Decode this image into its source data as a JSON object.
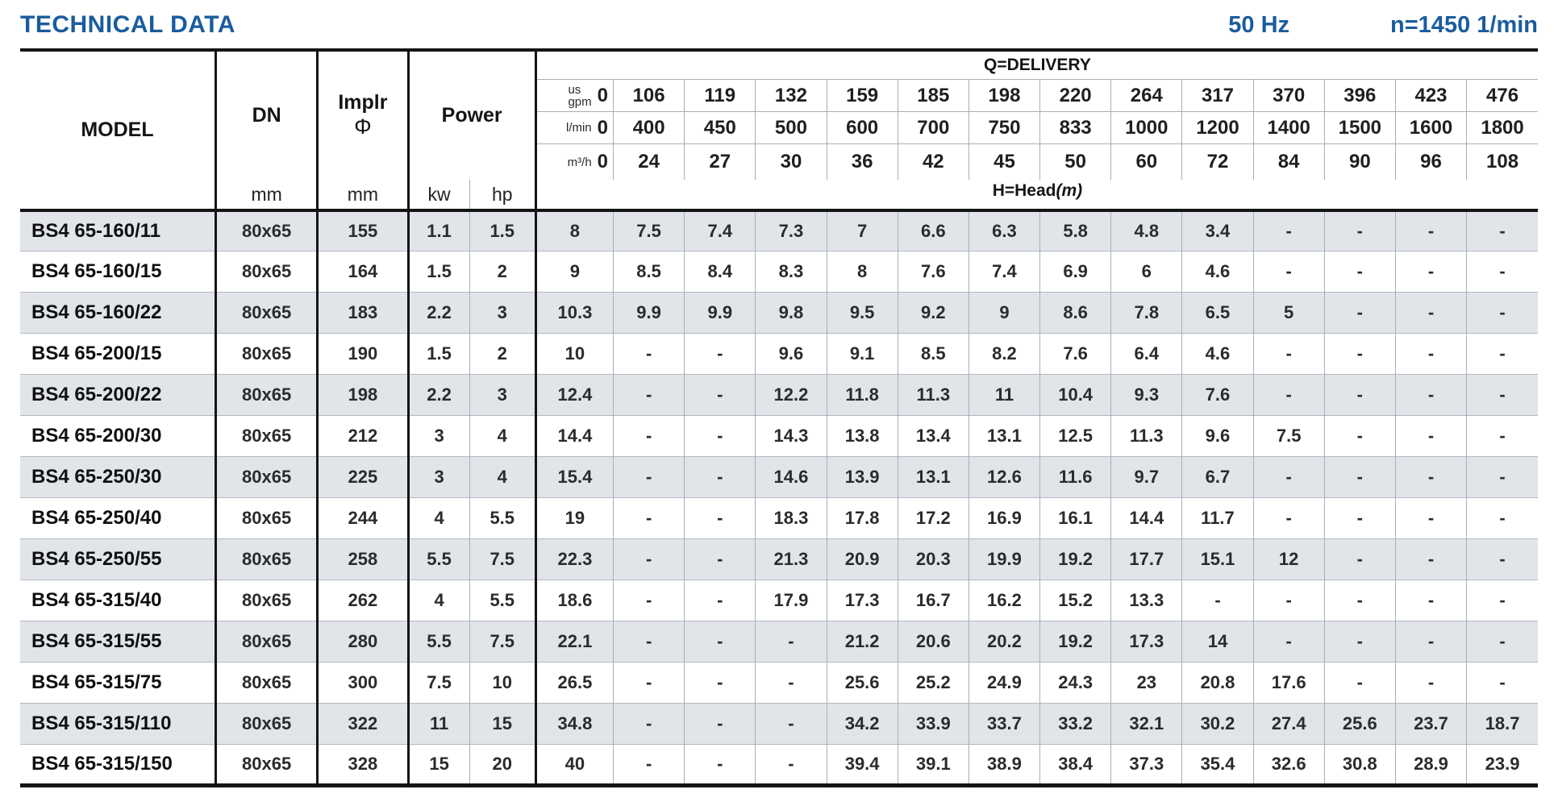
{
  "header": {
    "title": "TECHNICAL DATA",
    "frequency": "50 Hz",
    "speed": "n=1450 1/min"
  },
  "table": {
    "columns": {
      "model": "MODEL",
      "dn": "DN",
      "implr_line1": "Implr",
      "implr_line2": "Φ",
      "power": "Power",
      "dn_unit": "mm",
      "implr_unit": "mm",
      "kw_unit": "kw",
      "hp_unit": "hp"
    },
    "delivery_label": "Q=DELIVERY",
    "head_label": "H=Head",
    "head_unit": "(m)",
    "flow_rows": [
      {
        "unit": "us|gpm",
        "values": [
          "0",
          "106",
          "119",
          "132",
          "159",
          "185",
          "198",
          "220",
          "264",
          "317",
          "370",
          "396",
          "423",
          "476"
        ]
      },
      {
        "unit": "l/min",
        "values": [
          "0",
          "400",
          "450",
          "500",
          "600",
          "700",
          "750",
          "833",
          "1000",
          "1200",
          "1400",
          "1500",
          "1600",
          "1800"
        ]
      },
      {
        "unit": "m³/h",
        "values": [
          "0",
          "24",
          "27",
          "30",
          "36",
          "42",
          "45",
          "50",
          "60",
          "72",
          "84",
          "90",
          "96",
          "108"
        ]
      }
    ],
    "rows": [
      {
        "model": "BS4 65-160/11",
        "dn": "80x65",
        "implr": "155",
        "kw": "1.1",
        "hp": "1.5",
        "head": [
          "8",
          "7.5",
          "7.4",
          "7.3",
          "7",
          "6.6",
          "6.3",
          "5.8",
          "4.8",
          "3.4",
          "-",
          "-",
          "-",
          "-"
        ]
      },
      {
        "model": "BS4 65-160/15",
        "dn": "80x65",
        "implr": "164",
        "kw": "1.5",
        "hp": "2",
        "head": [
          "9",
          "8.5",
          "8.4",
          "8.3",
          "8",
          "7.6",
          "7.4",
          "6.9",
          "6",
          "4.6",
          "-",
          "-",
          "-",
          "-"
        ]
      },
      {
        "model": "BS4 65-160/22",
        "dn": "80x65",
        "implr": "183",
        "kw": "2.2",
        "hp": "3",
        "head": [
          "10.3",
          "9.9",
          "9.9",
          "9.8",
          "9.5",
          "9.2",
          "9",
          "8.6",
          "7.8",
          "6.5",
          "5",
          "-",
          "-",
          "-"
        ]
      },
      {
        "model": "BS4 65-200/15",
        "dn": "80x65",
        "implr": "190",
        "kw": "1.5",
        "hp": "2",
        "head": [
          "10",
          "-",
          "-",
          "9.6",
          "9.1",
          "8.5",
          "8.2",
          "7.6",
          "6.4",
          "4.6",
          "-",
          "-",
          "-",
          "-"
        ]
      },
      {
        "model": "BS4 65-200/22",
        "dn": "80x65",
        "implr": "198",
        "kw": "2.2",
        "hp": "3",
        "head": [
          "12.4",
          "-",
          "-",
          "12.2",
          "11.8",
          "11.3",
          "11",
          "10.4",
          "9.3",
          "7.6",
          "-",
          "-",
          "-",
          "-"
        ]
      },
      {
        "model": "BS4 65-200/30",
        "dn": "80x65",
        "implr": "212",
        "kw": "3",
        "hp": "4",
        "head": [
          "14.4",
          "-",
          "-",
          "14.3",
          "13.8",
          "13.4",
          "13.1",
          "12.5",
          "11.3",
          "9.6",
          "7.5",
          "-",
          "-",
          "-"
        ]
      },
      {
        "model": "BS4 65-250/30",
        "dn": "80x65",
        "implr": "225",
        "kw": "3",
        "hp": "4",
        "head": [
          "15.4",
          "-",
          "-",
          "14.6",
          "13.9",
          "13.1",
          "12.6",
          "11.6",
          "9.7",
          "6.7",
          "-",
          "-",
          "-",
          "-"
        ]
      },
      {
        "model": "BS4 65-250/40",
        "dn": "80x65",
        "implr": "244",
        "kw": "4",
        "hp": "5.5",
        "head": [
          "19",
          "-",
          "-",
          "18.3",
          "17.8",
          "17.2",
          "16.9",
          "16.1",
          "14.4",
          "11.7",
          "-",
          "-",
          "-",
          "-"
        ]
      },
      {
        "model": "BS4 65-250/55",
        "dn": "80x65",
        "implr": "258",
        "kw": "5.5",
        "hp": "7.5",
        "head": [
          "22.3",
          "-",
          "-",
          "21.3",
          "20.9",
          "20.3",
          "19.9",
          "19.2",
          "17.7",
          "15.1",
          "12",
          "-",
          "-",
          "-"
        ]
      },
      {
        "model": "BS4 65-315/40",
        "dn": "80x65",
        "implr": "262",
        "kw": "4",
        "hp": "5.5",
        "head": [
          "18.6",
          "-",
          "-",
          "17.9",
          "17.3",
          "16.7",
          "16.2",
          "15.2",
          "13.3",
          "-",
          "-",
          "-",
          "-",
          "-"
        ]
      },
      {
        "model": "BS4 65-315/55",
        "dn": "80x65",
        "implr": "280",
        "kw": "5.5",
        "hp": "7.5",
        "head": [
          "22.1",
          "-",
          "-",
          "-",
          "21.2",
          "20.6",
          "20.2",
          "19.2",
          "17.3",
          "14",
          "-",
          "-",
          "-",
          "-"
        ]
      },
      {
        "model": "BS4 65-315/75",
        "dn": "80x65",
        "implr": "300",
        "kw": "7.5",
        "hp": "10",
        "head": [
          "26.5",
          "-",
          "-",
          "-",
          "25.6",
          "25.2",
          "24.9",
          "24.3",
          "23",
          "20.8",
          "17.6",
          "-",
          "-",
          "-"
        ]
      },
      {
        "model": "BS4 65-315/110",
        "dn": "80x65",
        "implr": "322",
        "kw": "11",
        "hp": "15",
        "head": [
          "34.8",
          "-",
          "-",
          "-",
          "34.2",
          "33.9",
          "33.7",
          "33.2",
          "32.1",
          "30.2",
          "27.4",
          "25.6",
          "23.7",
          "18.7"
        ]
      },
      {
        "model": "BS4 65-315/150",
        "dn": "80x65",
        "implr": "328",
        "kw": "15",
        "hp": "20",
        "head": [
          "40",
          "-",
          "-",
          "-",
          "39.4",
          "39.1",
          "38.9",
          "38.4",
          "37.3",
          "35.4",
          "32.6",
          "30.8",
          "28.9",
          "23.9"
        ]
      }
    ]
  },
  "colors": {
    "accent_blue": "#1a5c9e",
    "row_stripe": "#e1e5ea",
    "grid_gray": "#a9aeb6",
    "line_black": "#141414"
  }
}
